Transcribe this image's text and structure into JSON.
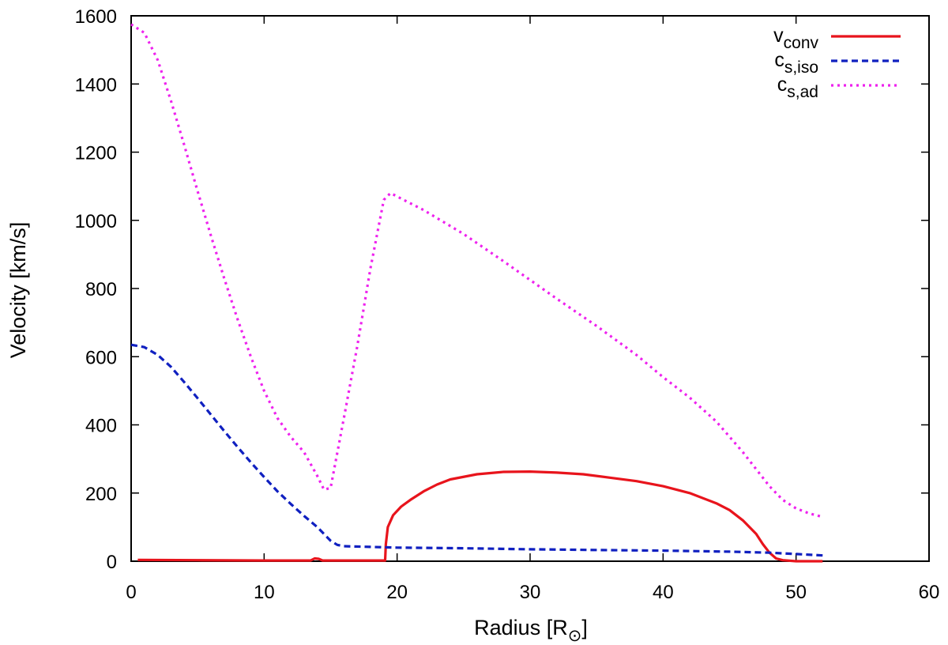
{
  "chart_data": {
    "type": "line",
    "xlabel": "Radius [R",
    "xlabel_symbol": "⊙",
    "xlabel_suffix": "]",
    "ylabel": "Velocity [km/s]",
    "xlim": [
      0,
      60
    ],
    "ylim": [
      0,
      1600
    ],
    "xticks": [
      0,
      10,
      20,
      30,
      40,
      50,
      60
    ],
    "yticks": [
      0,
      200,
      400,
      600,
      800,
      1000,
      1200,
      1400,
      1600
    ],
    "grid": false,
    "legend_position": "top-right",
    "series": [
      {
        "name": "v",
        "subscript": "conv",
        "color": "#e8141c",
        "dash": "solid",
        "x": [
          0.5,
          5,
          10,
          13.5,
          13.8,
          14.1,
          14.4,
          19.1,
          19.15,
          19.3,
          19.7,
          20.3,
          21,
          22,
          23,
          24,
          26,
          28,
          30,
          32,
          34,
          36,
          38,
          40,
          42,
          44,
          45,
          46,
          47,
          47.5,
          48,
          48.5,
          49,
          50,
          52
        ],
        "y": [
          4,
          3,
          2,
          2,
          8,
          7,
          2,
          2,
          50,
          100,
          135,
          160,
          180,
          205,
          225,
          240,
          255,
          262,
          263,
          260,
          255,
          245,
          235,
          220,
          200,
          170,
          150,
          120,
          80,
          50,
          25,
          8,
          3,
          0,
          0
        ]
      },
      {
        "name": "c",
        "subscript": "s,iso",
        "color": "#1020c0",
        "dash": "dashed",
        "x": [
          0,
          1,
          2,
          3,
          4,
          5,
          6,
          7,
          8,
          9,
          10,
          11,
          12,
          13,
          14,
          14.5,
          15,
          15.5,
          16,
          18,
          20,
          25,
          30,
          35,
          40,
          45,
          48,
          50,
          52
        ],
        "y": [
          635,
          628,
          605,
          570,
          525,
          478,
          430,
          382,
          335,
          290,
          247,
          205,
          168,
          133,
          100,
          80,
          60,
          48,
          44,
          42,
          40,
          38,
          35,
          33,
          31,
          28,
          25,
          21,
          17
        ]
      },
      {
        "name": "c",
        "subscript": "s,ad",
        "color": "#ee22ee",
        "dash": "dotted",
        "x": [
          0,
          1,
          2,
          3,
          4,
          5,
          6,
          7,
          8,
          9,
          10,
          11,
          12,
          13,
          14,
          14.5,
          15,
          16,
          17,
          18,
          19,
          19.5,
          20,
          22,
          25,
          28,
          30,
          32,
          35,
          38,
          40,
          42,
          44,
          45,
          46,
          47,
          48,
          49,
          50,
          51,
          52
        ],
        "y": [
          1575,
          1550,
          1470,
          1350,
          1220,
          1085,
          955,
          830,
          710,
          600,
          500,
          420,
          365,
          320,
          250,
          210,
          215,
          420,
          630,
          860,
          1060,
          1080,
          1070,
          1030,
          960,
          880,
          825,
          770,
          690,
          605,
          540,
          480,
          410,
          365,
          320,
          270,
          220,
          180,
          155,
          140,
          130
        ]
      }
    ]
  }
}
